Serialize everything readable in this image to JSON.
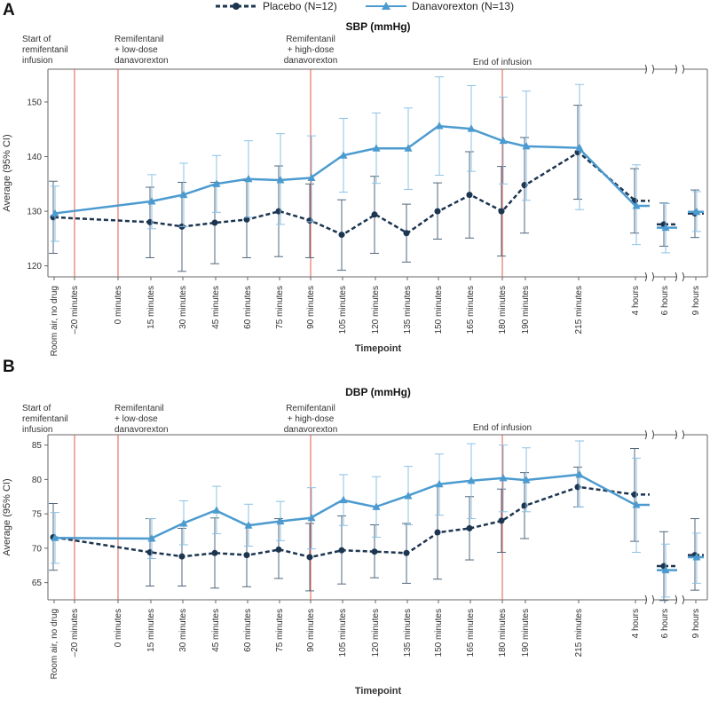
{
  "legend": {
    "placebo_label": "Placebo (N=12)",
    "danavorexton_label": "Danavorexton (N=13)"
  },
  "colors": {
    "placebo": "#1c3550",
    "danavorexton": "#4c9bd0",
    "danavorexton_error": "#8cc2e6",
    "placebo_error": "#51677c",
    "marker_line": "#e15a4a",
    "frame": "#666666"
  },
  "chart_data": [
    {
      "panel": "A",
      "type": "line",
      "title": "SBP (mmHg)",
      "xlabel": "Timepoint",
      "ylabel": "Average (95% CI)",
      "ylim": [
        118,
        156
      ],
      "yticks": [
        120,
        130,
        140,
        150
      ],
      "categories": [
        "Room air, no drug",
        "–20 minutes",
        "0 minutes",
        "15 minutes",
        "30 minutes",
        "45 minutes",
        "60 minutes",
        "75 minutes",
        "90 minutes",
        "105 minutes",
        "120 minutes",
        "135 minutes",
        "150 minutes",
        "165 minutes",
        "180 minutes",
        "190 minutes",
        "215 minutes",
        "4 hours",
        "6 hours",
        "9 hours"
      ],
      "annotations": [
        {
          "at": "–20 minutes",
          "text": [
            "Start of",
            "remifentanil",
            "infusion"
          ]
        },
        {
          "at": "0 minutes",
          "text": [
            "Remifentanil",
            "+ low-dose",
            "danavorexton"
          ]
        },
        {
          "at": "90 minutes",
          "text": [
            "Remifentanil",
            "+ high-dose",
            "danavorexton"
          ]
        },
        {
          "at": "180 minutes",
          "text": [
            "End of infusion"
          ]
        }
      ],
      "series": [
        {
          "name": "Placebo (N=12)",
          "values": [
            128.9,
            null,
            null,
            128.0,
            127.2,
            127.9,
            128.5,
            130.0,
            128.3,
            125.7,
            129.4,
            126.0,
            130.0,
            133.0,
            130.0,
            134.8,
            140.8,
            131.9,
            127.6,
            129.6
          ],
          "lower": [
            122.3,
            null,
            null,
            121.5,
            119.0,
            120.4,
            121.5,
            121.7,
            121.5,
            119.2,
            122.3,
            120.7,
            124.9,
            125.1,
            121.8,
            126.0,
            132.2,
            126.0,
            123.6,
            125.2
          ],
          "upper": [
            135.5,
            null,
            null,
            134.4,
            135.3,
            135.3,
            135.6,
            138.3,
            135.0,
            132.1,
            136.4,
            131.3,
            135.2,
            140.9,
            138.2,
            143.5,
            149.4,
            137.8,
            131.5,
            133.9
          ]
        },
        {
          "name": "Danavorexton (N=13)",
          "values": [
            129.6,
            null,
            null,
            131.8,
            133.0,
            135.0,
            135.9,
            135.7,
            136.1,
            140.2,
            141.5,
            141.5,
            145.6,
            145.1,
            142.9,
            141.9,
            141.6,
            131.0,
            127.0,
            129.9
          ],
          "lower": [
            124.5,
            null,
            null,
            126.8,
            127.2,
            129.8,
            128.9,
            127.6,
            128.1,
            133.5,
            135.1,
            134.0,
            136.6,
            137.3,
            135.0,
            132.0,
            130.3,
            123.9,
            122.4,
            126.3
          ],
          "upper": [
            134.6,
            null,
            null,
            136.7,
            138.8,
            140.2,
            142.9,
            144.2,
            143.8,
            147.0,
            148.0,
            148.9,
            154.6,
            153.0,
            150.9,
            152.0,
            153.2,
            138.5,
            131.4,
            133.6
          ]
        }
      ]
    },
    {
      "panel": "B",
      "type": "line",
      "title": "DBP (mmHg)",
      "xlabel": "Timepoint",
      "ylabel": "Average (95% CI)",
      "ylim": [
        62.5,
        86.5
      ],
      "yticks": [
        65,
        70,
        75,
        80,
        85
      ],
      "categories": [
        "Room air, no drug",
        "–20 minutes",
        "0 minutes",
        "15 minutes",
        "30 minutes",
        "45 minutes",
        "60 minutes",
        "75 minutes",
        "90 minutes",
        "105 minutes",
        "120 minutes",
        "135 minutes",
        "150 minutes",
        "165 minutes",
        "180 minutes",
        "190 minutes",
        "215 minutes",
        "4 hours",
        "6 hours",
        "9 hours"
      ],
      "annotations": [
        {
          "at": "–20 minutes",
          "text": [
            "Start of",
            "remifentanil",
            "infusion"
          ]
        },
        {
          "at": "0 minutes",
          "text": [
            "Remifentanil",
            "+ low-dose",
            "danavorexton"
          ]
        },
        {
          "at": "90 minutes",
          "text": [
            "Remifentanil",
            "+ high-dose",
            "danavorexton"
          ]
        },
        {
          "at": "180 minutes",
          "text": [
            "End of infusion"
          ]
        }
      ],
      "series": [
        {
          "name": "Placebo (N=12)",
          "values": [
            71.6,
            null,
            null,
            69.4,
            68.8,
            69.3,
            69.0,
            69.8,
            68.7,
            69.7,
            69.5,
            69.3,
            72.3,
            72.9,
            74.0,
            76.2,
            78.9,
            77.8,
            67.4,
            69.0
          ],
          "lower": [
            66.8,
            null,
            null,
            64.5,
            64.5,
            64.2,
            64.4,
            65.6,
            63.8,
            64.8,
            65.7,
            64.9,
            65.5,
            68.3,
            69.4,
            71.4,
            76.0,
            71.0,
            62.4,
            63.9
          ],
          "upper": [
            76.5,
            null,
            null,
            74.3,
            72.9,
            74.4,
            73.5,
            74.3,
            73.6,
            74.7,
            73.4,
            73.6,
            79.1,
            77.5,
            78.6,
            81.0,
            81.8,
            84.5,
            72.4,
            74.3
          ]
        },
        {
          "name": "Danavorexton (N=13)",
          "values": [
            71.5,
            null,
            null,
            71.4,
            73.6,
            75.5,
            73.3,
            73.9,
            74.4,
            77.0,
            76.0,
            77.6,
            79.3,
            79.8,
            80.2,
            79.9,
            80.7,
            76.3,
            66.8,
            68.7
          ],
          "lower": [
            67.8,
            null,
            null,
            68.5,
            70.5,
            72.1,
            70.3,
            71.1,
            69.9,
            73.3,
            71.6,
            73.4,
            74.8,
            74.3,
            75.3,
            75.3,
            76.0,
            69.4,
            62.9,
            64.9
          ],
          "upper": [
            75.2,
            null,
            null,
            74.3,
            76.9,
            79.0,
            76.4,
            76.8,
            78.8,
            80.7,
            80.4,
            81.9,
            83.7,
            85.2,
            85.0,
            84.6,
            85.6,
            83.1,
            70.6,
            72.2
          ]
        }
      ]
    }
  ]
}
